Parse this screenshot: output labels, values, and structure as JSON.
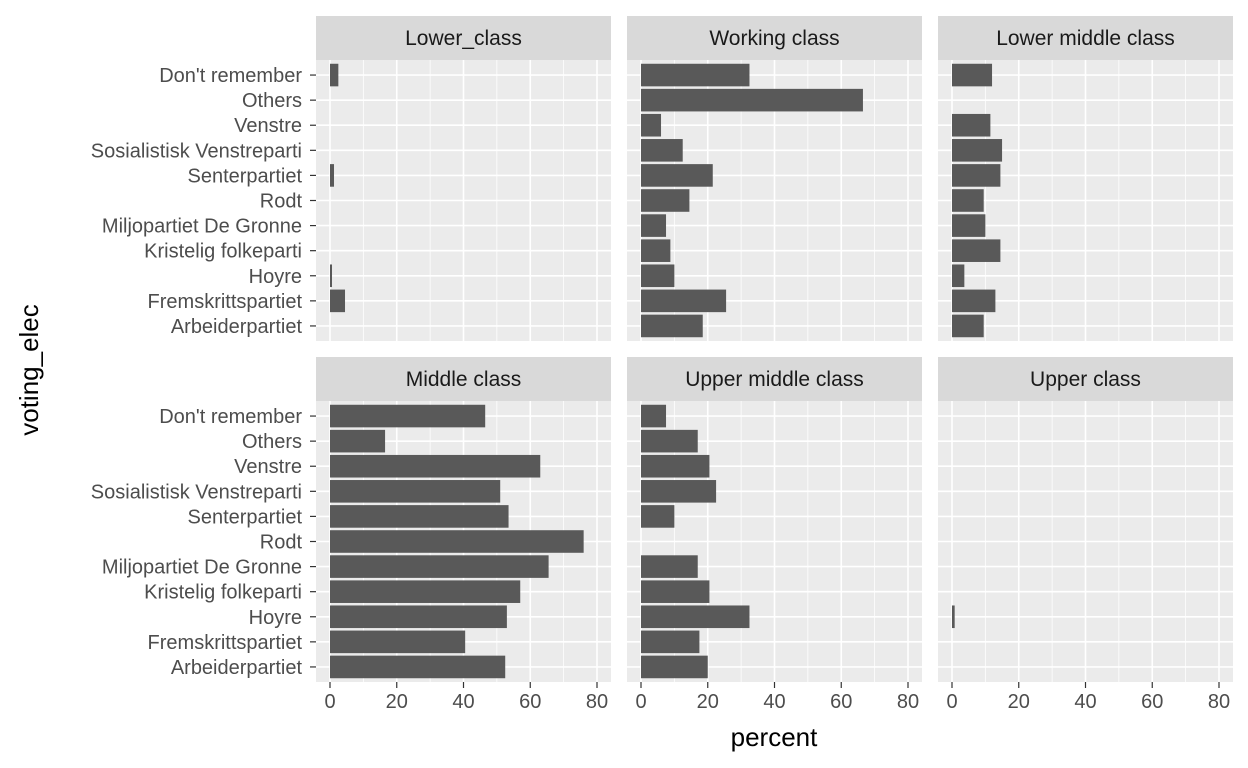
{
  "chart_data": {
    "type": "bar",
    "orientation": "horizontal",
    "facet_layout": "2 rows x 3 columns",
    "xlabel": "percent",
    "ylabel": "voting_elec",
    "xlim": [
      0,
      80
    ],
    "x_ticks": [
      0,
      20,
      40,
      60,
      80
    ],
    "grid": true,
    "legend": "none",
    "bar_color": "#595959",
    "panel_background": "#EBEBEB",
    "strip_background": "#D9D9D9",
    "categories": [
      "Don't remember",
      "Others",
      "Venstre",
      "Sosialistisk Venstreparti",
      "Senterpartiet",
      "Rodt",
      "Miljopartiet De Gronne",
      "Kristelig folkeparti",
      "Hoyre",
      "Fremskrittspartiet",
      "Arbeiderpartiet"
    ],
    "panels": [
      {
        "name": "Lower_class",
        "values": [
          2.5,
          0,
          0,
          0,
          1.2,
          0,
          0,
          0,
          0.6,
          4.5,
          0
        ]
      },
      {
        "name": "Working class",
        "values": [
          32.5,
          66.5,
          6,
          12.5,
          21.5,
          14.5,
          7.5,
          8.8,
          10,
          25.5,
          18.5
        ]
      },
      {
        "name": "Lower middle class",
        "values": [
          12,
          0,
          11.5,
          15,
          14.5,
          9.5,
          10,
          14.5,
          3.7,
          13,
          9.5
        ]
      },
      {
        "name": "Middle class",
        "values": [
          46.5,
          16.5,
          63,
          51,
          53.5,
          76,
          65.5,
          57,
          53,
          40.5,
          52.5
        ]
      },
      {
        "name": "Upper middle class",
        "values": [
          7.5,
          17,
          20.5,
          22.5,
          10,
          0,
          17,
          20.5,
          32.5,
          17.5,
          20
        ]
      },
      {
        "name": "Upper class",
        "values": [
          0,
          0,
          0,
          0,
          0,
          0,
          0,
          0,
          0.8,
          0,
          0
        ]
      }
    ]
  }
}
